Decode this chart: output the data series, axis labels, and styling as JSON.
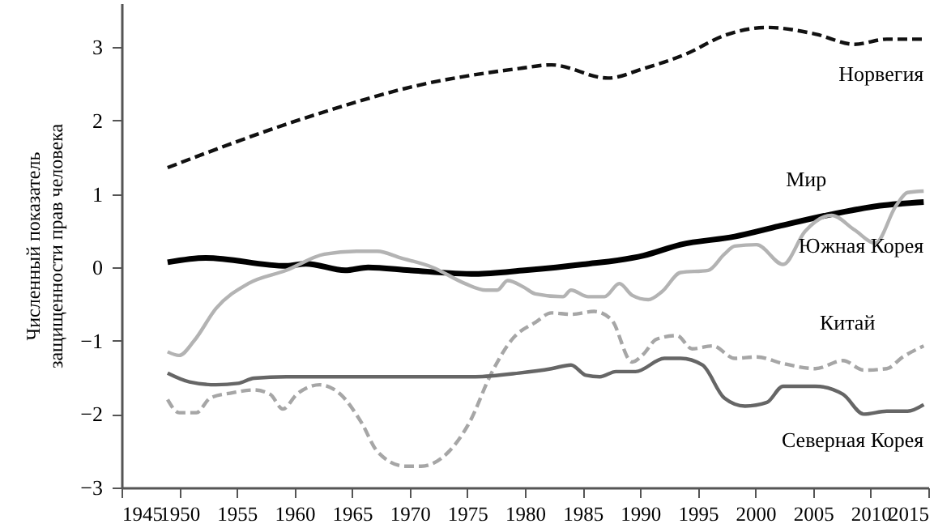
{
  "chart_data": {
    "type": "line",
    "ylabel": "Численный показатель\nзащищенности прав человека",
    "xlim": [
      1945,
      2015
    ],
    "xticks": [
      1945,
      1950,
      1955,
      1960,
      1965,
      1970,
      1975,
      1980,
      1985,
      1990,
      1995,
      2000,
      2005,
      2010,
      2015
    ],
    "ylim": [
      -3,
      3.6
    ],
    "yticks": [
      -3,
      -2,
      -1,
      0,
      1,
      2,
      3
    ],
    "grid": false,
    "marker": "none",
    "series": [
      {
        "name": "Норвегия",
        "color": "#111111",
        "line_style": "dashed",
        "x": [
          1949,
          1961.6,
          1971,
          1979.5,
          1982.3,
          1987.2,
          1990.3,
          1994,
          1997.3,
          2001,
          2005.2,
          2008.6,
          2011.4,
          2014.6
        ],
        "values": [
          1.36,
          2.07,
          2.49,
          2.71,
          2.76,
          2.58,
          2.71,
          2.91,
          3.16,
          3.27,
          3.18,
          3.04,
          3.11,
          3.11
        ]
      },
      {
        "name": "Мир",
        "color": "#000000",
        "line_style": "solid",
        "x": [
          1949,
          1952.3,
          1959.3,
          1961,
          1964.4,
          1966.4,
          1970,
          1975.7,
          1980,
          1985,
          1990.3,
          1993.5,
          1998.2,
          2002,
          2006.2,
          2010.8,
          2014.6
        ],
        "values": [
          0.07,
          0.13,
          0.02,
          0.05,
          -0.04,
          0,
          -0.04,
          -0.09,
          -0.04,
          0.04,
          0.16,
          0.31,
          0.42,
          0.56,
          0.71,
          0.84,
          0.89
        ]
      },
      {
        "name": "Южная Корея",
        "color": "#b3b3b3",
        "line_style": "solid",
        "x": [
          1949,
          1950,
          1951.3,
          1953.2,
          1956,
          1959.3,
          1962.6,
          1965.4,
          1967.2,
          1969.2,
          1972,
          1974.8,
          1976.6,
          1977.6,
          1978.5,
          1979.9,
          1980.9,
          1983.3,
          1984,
          1985.5,
          1986.9,
          1988.2,
          1989.3,
          1990.7,
          1991.9,
          1993.5,
          1995.9,
          1997.3,
          1998.2,
          2000.1,
          2002.4,
          2004.3,
          2006.6,
          2008.6,
          2010.4,
          2012.2,
          2013.2,
          2014.6
        ],
        "values": [
          -1.15,
          -1.2,
          -1.0,
          -0.56,
          -0.22,
          -0.04,
          0.18,
          0.22,
          0.22,
          0.13,
          0.0,
          -0.22,
          -0.31,
          -0.31,
          -0.18,
          -0.27,
          -0.36,
          -0.4,
          -0.31,
          -0.4,
          -0.4,
          -0.22,
          -0.38,
          -0.44,
          -0.33,
          -0.07,
          -0.04,
          0.18,
          0.29,
          0.31,
          0.04,
          0.49,
          0.71,
          0.51,
          0.33,
          0.84,
          1.02,
          1.04
        ]
      },
      {
        "name": "Китай",
        "color": "#a6a6a6",
        "line_style": "dashed",
        "x": [
          1949,
          1950,
          1951.5,
          1952.7,
          1954.6,
          1956.5,
          1957.9,
          1959,
          1960.2,
          1962.2,
          1964,
          1965.8,
          1967.2,
          1969.6,
          1971,
          1973.4,
          1975.2,
          1977.1,
          1979,
          1980.9,
          1982.3,
          1984,
          1986,
          1987.5,
          1989.3,
          1990.3,
          1991.4,
          1993.2,
          1994.5,
          1996.3,
          1998.2,
          2000.1,
          2002.4,
          2005.2,
          2007.6,
          2009.4,
          2011.4,
          2012.8,
          2014.6
        ],
        "values": [
          -1.8,
          -1.98,
          -1.98,
          -1.78,
          -1.71,
          -1.67,
          -1.73,
          -1.93,
          -1.73,
          -1.6,
          -1.73,
          -2.11,
          -2.51,
          -2.71,
          -2.71,
          -2.51,
          -2.11,
          -1.44,
          -0.96,
          -0.75,
          -0.62,
          -0.64,
          -0.6,
          -0.71,
          -1.29,
          -1.18,
          -0.98,
          -0.93,
          -1.11,
          -1.07,
          -1.24,
          -1.22,
          -1.31,
          -1.38,
          -1.27,
          -1.4,
          -1.38,
          -1.22,
          -1.07
        ]
      },
      {
        "name": "Северная Корея",
        "color": "#666666",
        "line_style": "solid",
        "x": [
          1949,
          1950.9,
          1953.2,
          1955.1,
          1956.5,
          1959.3,
          1975.7,
          1979.5,
          1982.3,
          1984,
          1985.3,
          1986.5,
          1987.9,
          1989.6,
          1992.1,
          1993.5,
          1995.4,
          1997.3,
          1999.1,
          2001,
          2002.4,
          2005.2,
          2007.6,
          2009.4,
          2011.4,
          2013.2,
          2014.6
        ],
        "values": [
          -1.44,
          -1.56,
          -1.6,
          -1.58,
          -1.51,
          -1.49,
          -1.49,
          -1.44,
          -1.38,
          -1.33,
          -1.47,
          -1.49,
          -1.42,
          -1.42,
          -1.24,
          -1.24,
          -1.33,
          -1.78,
          -1.89,
          -1.84,
          -1.62,
          -1.62,
          -1.73,
          -2.0,
          -1.96,
          -1.96,
          -1.87
        ]
      }
    ]
  }
}
